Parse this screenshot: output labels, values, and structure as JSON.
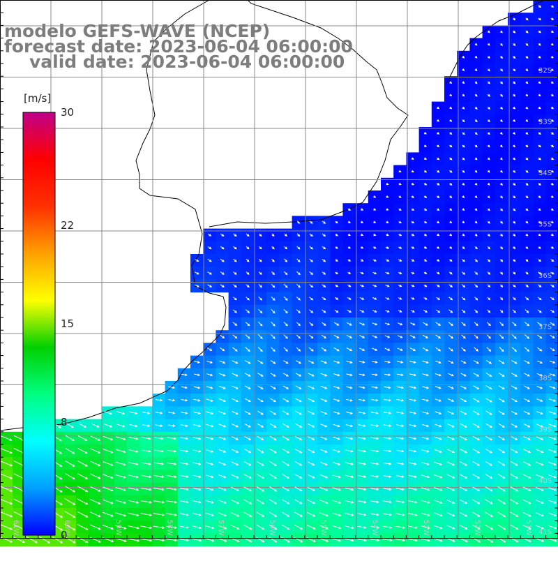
{
  "title": {
    "model": "modelo GEFS-WAVE (NCEP)",
    "forecast": "forecast date: 2023-06-04 06:00:00",
    "valid": "valid date: 2023-06-04 06:00:00"
  },
  "colorbar": {
    "unit": "[m/s]",
    "ticks": [
      "30",
      "22",
      "15",
      "8",
      "0"
    ],
    "range": [
      0,
      30
    ],
    "colors": [
      "#0000ff",
      "#00a0ff",
      "#00ffff",
      "#00ff80",
      "#00d000",
      "#ffff00",
      "#ffa000",
      "#ff3000",
      "#ff0000",
      "#c0008a"
    ]
  },
  "map": {
    "lat_labels": [
      "32S",
      "33S",
      "34S",
      "35S",
      "36S",
      "37S",
      "38S",
      "39S",
      "40S",
      "41S"
    ],
    "lon_labels": [
      "61W",
      "60W",
      "59W",
      "58W",
      "57W",
      "56W",
      "55W",
      "54W",
      "53W",
      "52W",
      "51W"
    ],
    "land_color": "#ffffff",
    "grid_color": "#888888",
    "arrow_color": "#ffffff"
  }
}
